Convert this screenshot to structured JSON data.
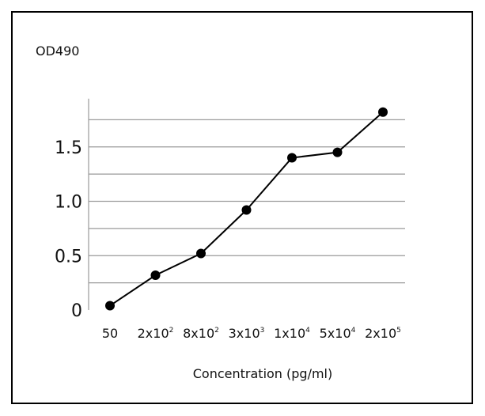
{
  "chart_data": {
    "type": "line",
    "title": "",
    "ylabel": "OD490",
    "xlabel": "Concentration (pg/ml)",
    "categories": [
      {
        "base": "50",
        "sup": ""
      },
      {
        "base": "2x10",
        "sup": "2"
      },
      {
        "base": "8x10",
        "sup": "2"
      },
      {
        "base": "3x10",
        "sup": "3"
      },
      {
        "base": "1x10",
        "sup": "4"
      },
      {
        "base": "5x10",
        "sup": "4"
      },
      {
        "base": "2x10",
        "sup": "5"
      }
    ],
    "yticks": [
      "0",
      "0.5",
      "1.0",
      "1.5"
    ],
    "ylim": [
      0,
      1.9
    ],
    "grid": true,
    "series": [
      {
        "values": [
          0.04,
          0.32,
          0.52,
          0.92,
          1.4,
          1.45,
          1.82
        ],
        "color": "#000000",
        "marker": "circle"
      }
    ]
  }
}
